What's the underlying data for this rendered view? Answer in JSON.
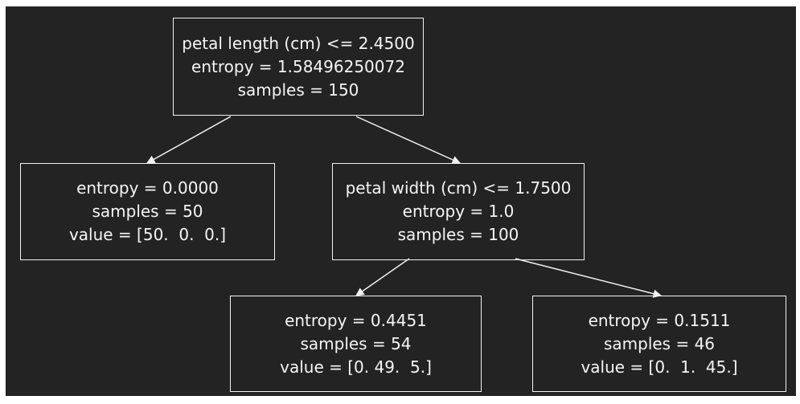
{
  "tree": {
    "root": {
      "line1": "petal length (cm) <= 2.4500",
      "line2": "entropy = 1.58496250072",
      "line3": "samples = 150"
    },
    "left_leaf": {
      "line1": "entropy = 0.0000",
      "line2": "samples = 50",
      "line3": "value = [50.  0.  0.]"
    },
    "right_split": {
      "line1": "petal width (cm) <= 1.7500",
      "line2": "entropy = 1.0",
      "line3": "samples = 100"
    },
    "leaf_3": {
      "line1": "entropy = 0.4451",
      "line2": "samples = 54",
      "line3": "value = [0. 49.  5.]"
    },
    "leaf_4": {
      "line1": "entropy = 0.1511",
      "line2": "samples = 46",
      "line3": "value = [0.  1.  45.]"
    }
  },
  "colors": {
    "background": "#232323",
    "stroke": "#f2f2f2",
    "text": "#f5f5f5"
  }
}
